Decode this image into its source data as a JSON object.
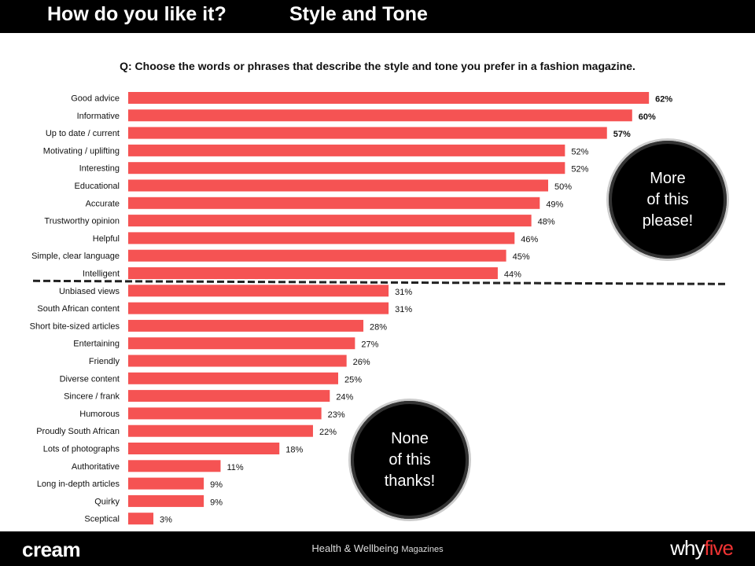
{
  "header": {
    "title_left": "How do you like it?",
    "title_right": "Style and Tone"
  },
  "question": "Q: Choose the words or phrases that describe the style and tone you prefer in a fashion magazine.",
  "chart_data": {
    "type": "bar",
    "orientation": "horizontal",
    "title": "",
    "xlabel": "",
    "ylabel": "",
    "categories": [
      "Good advice",
      "Informative",
      "Up to date / current",
      "Motivating / uplifting",
      "Interesting",
      "Educational",
      "Accurate",
      "Trustworthy opinion",
      "Helpful",
      "Simple, clear language",
      "Intelligent",
      "Unbiased views",
      "South African content",
      "Short bite-sized articles",
      "Entertaining",
      "Friendly",
      "Diverse content",
      "Sincere / frank",
      "Humorous",
      "Proudly South African",
      "Lots of photographs",
      "Authoritative",
      "Long in-depth articles",
      "Quirky",
      "Sceptical"
    ],
    "values": [
      62,
      60,
      57,
      52,
      52,
      50,
      49,
      48,
      46,
      45,
      44,
      31,
      31,
      28,
      27,
      26,
      25,
      24,
      23,
      22,
      18,
      11,
      9,
      9,
      3
    ],
    "data_labels": [
      "62%",
      "60%",
      "57%",
      "52%",
      "52%",
      "50%",
      "49%",
      "48%",
      "46%",
      "45%",
      "44%",
      "31%",
      "31%",
      "28%",
      "27%",
      "26%",
      "25%",
      "24%",
      "23%",
      "22%",
      "18%",
      "11%",
      "9%",
      "9%",
      "3%"
    ],
    "bold_labels_top_n": 3,
    "bar_color": "#f55353",
    "divider_after_index": 10,
    "grid": false
  },
  "callouts": {
    "more": "More\nof this\nplease!",
    "none": "None\nof this\nthanks!"
  },
  "footer": {
    "left_logo": "cream",
    "center_main": "Health & Wellbeing",
    "center_small": "Magazines",
    "right_logo_a": "why",
    "right_logo_b": "five"
  },
  "colors": {
    "bar": "#f55353",
    "header_bg": "#000000",
    "footer_bg": "#000000"
  }
}
